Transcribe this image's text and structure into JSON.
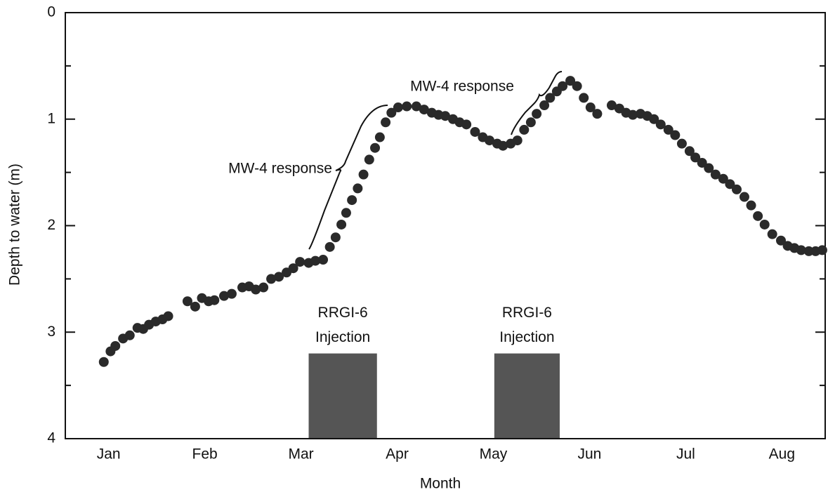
{
  "chart_data": {
    "type": "scatter",
    "y_label": "Depth to water (m)",
    "x_label": "Month",
    "xlim": [
      0.55,
      8.45
    ],
    "ylim": [
      0,
      4
    ],
    "y_inverted": true,
    "xticks": [
      {
        "value": 1,
        "label": "Jan"
      },
      {
        "value": 2,
        "label": "Feb"
      },
      {
        "value": 3,
        "label": "Mar"
      },
      {
        "value": 4,
        "label": "Apr"
      },
      {
        "value": 5,
        "label": "May"
      },
      {
        "value": 6,
        "label": "Jun"
      },
      {
        "value": 7,
        "label": "Jul"
      },
      {
        "value": 8,
        "label": "Aug"
      }
    ],
    "yticks": [
      0,
      1,
      2,
      3,
      4
    ],
    "yminor": [
      0.5,
      1.5,
      2.5,
      3.5
    ],
    "color": "#2a2a2a",
    "x": [
      0.95,
      1.02,
      1.07,
      1.15,
      1.22,
      1.3,
      1.36,
      1.42,
      1.49,
      1.56,
      1.62,
      1.82,
      1.9,
      1.97,
      2.04,
      2.1,
      2.2,
      2.28,
      2.39,
      2.46,
      2.53,
      2.61,
      2.69,
      2.77,
      2.85,
      2.92,
      2.99,
      3.08,
      3.15,
      3.23,
      3.3,
      3.36,
      3.42,
      3.47,
      3.53,
      3.59,
      3.65,
      3.71,
      3.77,
      3.82,
      3.88,
      3.94,
      4.01,
      4.1,
      4.2,
      4.28,
      4.36,
      4.43,
      4.5,
      4.58,
      4.65,
      4.72,
      4.81,
      4.89,
      4.96,
      5.04,
      5.1,
      5.18,
      5.25,
      5.32,
      5.39,
      5.45,
      5.53,
      5.59,
      5.66,
      5.72,
      5.8,
      5.87,
      5.94,
      6.01,
      6.08,
      6.23,
      6.31,
      6.38,
      6.45,
      6.53,
      6.6,
      6.67,
      6.74,
      6.82,
      6.89,
      6.96,
      7.04,
      7.1,
      7.17,
      7.24,
      7.31,
      7.39,
      7.46,
      7.53,
      7.61,
      7.68,
      7.75,
      7.82,
      7.9,
      7.99,
      8.06,
      8.13,
      8.2,
      8.28,
      8.35,
      8.42
    ],
    "values": [
      3.28,
      3.18,
      3.13,
      3.06,
      3.03,
      2.96,
      2.97,
      2.93,
      2.9,
      2.88,
      2.85,
      2.71,
      2.76,
      2.68,
      2.71,
      2.7,
      2.66,
      2.64,
      2.58,
      2.57,
      2.6,
      2.58,
      2.5,
      2.48,
      2.44,
      2.4,
      2.34,
      2.35,
      2.33,
      2.32,
      2.2,
      2.11,
      1.99,
      1.88,
      1.76,
      1.65,
      1.52,
      1.38,
      1.27,
      1.17,
      1.03,
      0.94,
      0.89,
      0.88,
      0.88,
      0.91,
      0.94,
      0.96,
      0.97,
      1.0,
      1.03,
      1.05,
      1.12,
      1.17,
      1.2,
      1.23,
      1.25,
      1.23,
      1.2,
      1.1,
      1.03,
      0.95,
      0.87,
      0.8,
      0.74,
      0.69,
      0.64,
      0.69,
      0.8,
      0.89,
      0.95,
      0.87,
      0.9,
      0.94,
      0.96,
      0.95,
      0.97,
      1.0,
      1.05,
      1.1,
      1.15,
      1.23,
      1.3,
      1.36,
      1.41,
      1.46,
      1.52,
      1.56,
      1.61,
      1.66,
      1.73,
      1.81,
      1.91,
      1.99,
      2.08,
      2.14,
      2.19,
      2.21,
      2.23,
      2.24,
      2.24,
      2.23
    ],
    "injections": [
      {
        "lines": [
          "RRGI-6",
          "Injection"
        ],
        "x": [
          3.08,
          3.79
        ],
        "top": 3.2
      },
      {
        "lines": [
          "RRGI-6",
          "Injection"
        ],
        "x": [
          5.01,
          5.69
        ],
        "top": 3.2
      }
    ],
    "injection_color": "#555555",
    "annotations": [
      "MW-4 response",
      "MW-4 response"
    ]
  }
}
